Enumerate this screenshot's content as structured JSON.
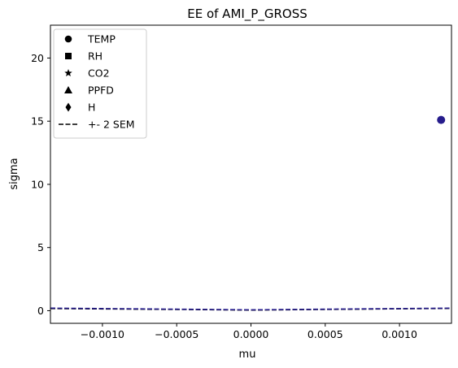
{
  "chart_data": {
    "type": "scatter",
    "title": "EE of AMI_P_GROSS",
    "xlabel": "mu",
    "ylabel": "sigma",
    "xlim": [
      -0.00135,
      0.00135
    ],
    "ylim": [
      -1.0,
      22.6
    ],
    "xticks": [
      -0.001,
      -0.0005,
      0.0,
      0.0005,
      0.001
    ],
    "xtick_labels": [
      "−0.0010",
      "−0.0005",
      "0.0000",
      "0.0005",
      "0.0010"
    ],
    "yticks": [
      0,
      5,
      10,
      15,
      20
    ],
    "ytick_labels": [
      "0",
      "5",
      "10",
      "15",
      "20"
    ],
    "grid": false,
    "legend_position": "top-left",
    "legend": [
      {
        "label": "TEMP",
        "marker": "circle"
      },
      {
        "label": "RH",
        "marker": "square"
      },
      {
        "label": "CO2",
        "marker": "star"
      },
      {
        "label": "PPFD",
        "marker": "triangle"
      },
      {
        "label": "H",
        "marker": "diamond"
      },
      {
        "label": "+- 2 SEM",
        "marker": "dashed-line"
      }
    ],
    "points": [
      {
        "series": "TEMP",
        "x": 0.00128,
        "y": 15.1,
        "color": "#261c8c"
      }
    ],
    "sem_lines": [
      {
        "x": [
          -0.00135,
          -0.0005,
          0.0,
          0.0005,
          0.00135
        ],
        "y": [
          0.17,
          0.1,
          0.05,
          0.1,
          0.18
        ],
        "color": "#000000"
      },
      {
        "x": [
          -0.00135,
          -0.0005,
          0.0,
          0.0005,
          0.00135
        ],
        "y": [
          0.2,
          0.12,
          0.07,
          0.12,
          0.2
        ],
        "color": "#261c8c"
      }
    ]
  }
}
